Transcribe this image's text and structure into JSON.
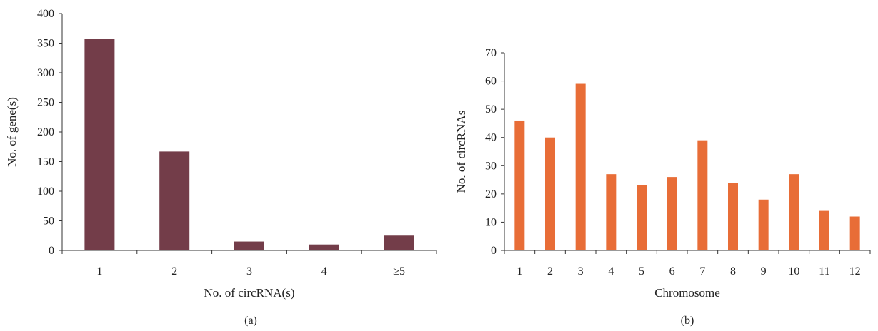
{
  "chart_data": [
    {
      "type": "bar",
      "panel_label": "(a)",
      "xlabel": "No. of circRNA(s)",
      "ylabel": "No. of gene(s)",
      "categories": [
        "1",
        "2",
        "3",
        "4",
        "≥5"
      ],
      "values": [
        357,
        167,
        15,
        10,
        25
      ],
      "ylim": [
        0,
        400
      ],
      "yticks": [
        "0",
        "50",
        "100",
        "150",
        "200",
        "250",
        "300",
        "350",
        "400"
      ],
      "grid": false,
      "color": "#733d49"
    },
    {
      "type": "bar",
      "panel_label": "(b)",
      "xlabel": "Chromosome",
      "ylabel": "No. of circRNAs",
      "categories": [
        "1",
        "2",
        "3",
        "4",
        "5",
        "6",
        "7",
        "8",
        "9",
        "10",
        "11",
        "12"
      ],
      "values": [
        46,
        40,
        59,
        27,
        23,
        26,
        39,
        24,
        18,
        27,
        14,
        12
      ],
      "ylim": [
        0,
        70
      ],
      "yticks": [
        "0",
        "10",
        "20",
        "30",
        "40",
        "50",
        "60",
        "70"
      ],
      "grid": false,
      "color": "#e86d37"
    }
  ]
}
